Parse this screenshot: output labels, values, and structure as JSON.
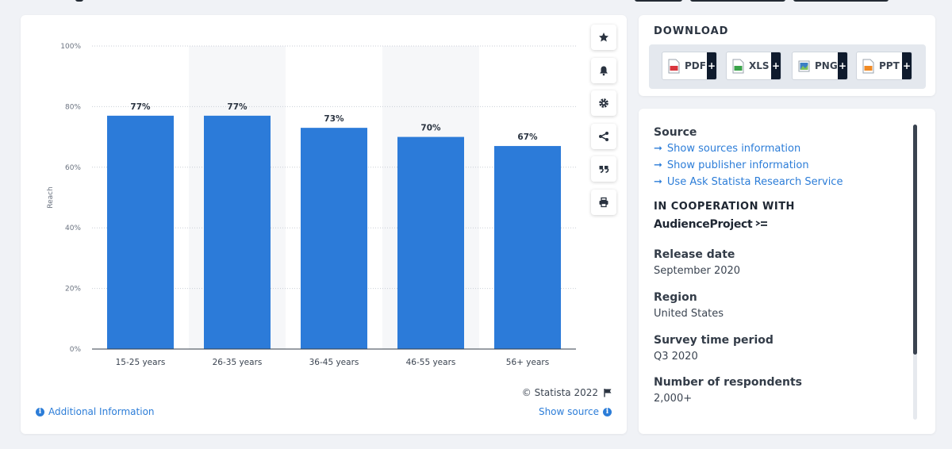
{
  "chart_data": {
    "type": "bar",
    "categories": [
      "15-25 years",
      "26-35 years",
      "36-45 years",
      "46-55 years",
      "56+ years"
    ],
    "values": [
      77,
      77,
      73,
      70,
      67
    ],
    "value_labels": [
      "77%",
      "77%",
      "73%",
      "70%",
      "67%"
    ],
    "ylabel": "Reach",
    "xlabel": "",
    "ylim": [
      0,
      100
    ],
    "yticks": [
      "0%",
      "20%",
      "40%",
      "60%",
      "80%",
      "100%"
    ],
    "grid": true,
    "bar_color": "#2c7bd9"
  },
  "chart_footer": {
    "copyright": "© Statista 2022",
    "additional_info": "Additional Information",
    "show_source": "Show source"
  },
  "toolbar": {
    "icons": [
      "star-icon",
      "bell-icon",
      "gear-icon",
      "share-icon",
      "quote-icon",
      "print-icon"
    ]
  },
  "download": {
    "title": "DOWNLOAD",
    "buttons": [
      {
        "label": "PDF",
        "icon": "pdf-file-icon",
        "color": "#d9363e"
      },
      {
        "label": "XLS",
        "icon": "xls-file-icon",
        "color": "#3aa34a"
      },
      {
        "label": "PNG",
        "icon": "png-file-icon",
        "color": "#3b7fc4"
      },
      {
        "label": "PPT",
        "icon": "ppt-file-icon",
        "color": "#f08a24"
      }
    ],
    "plus": "+"
  },
  "info": {
    "source_label": "Source",
    "links": [
      "Show sources information",
      "Show publisher information",
      "Use Ask Statista Research Service"
    ],
    "coop_label": "IN COOPERATION WITH",
    "partner": "AudienceProject",
    "release_label": "Release date",
    "release_value": "September 2020",
    "region_label": "Region",
    "region_value": "United States",
    "period_label": "Survey time period",
    "period_value": "Q3 2020",
    "respondents_label": "Number of respondents",
    "respondents_value": "2,000+"
  }
}
